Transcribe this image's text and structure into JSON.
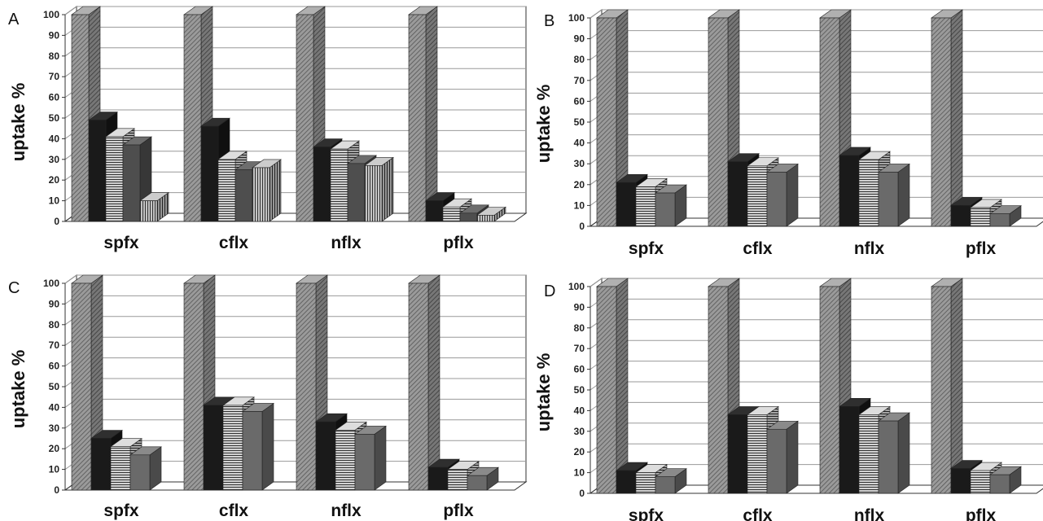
{
  "colors": {
    "control": "#8a8a8a",
    "series2": "#1a1a1a",
    "series3": "#6a6a6a",
    "series4": "#4e4e4e",
    "series5": "#7c7c7c",
    "grid": "#999999",
    "axis": "#333333"
  },
  "chart_data": [
    {
      "type": "bar",
      "panel_label": "A",
      "ylabel": "uptake %",
      "ylim": [
        0,
        100
      ],
      "yticks": [
        "0",
        "10",
        "20",
        "30",
        "40",
        "50",
        "60",
        "70",
        "80",
        "90",
        "100"
      ],
      "categories": [
        "spfx",
        "cflx",
        "nflx",
        "pflx"
      ],
      "series": [
        {
          "values": [
            100,
            100,
            100,
            100
          ]
        },
        {
          "values": [
            49,
            46,
            36,
            10
          ]
        },
        {
          "values": [
            41,
            30,
            35,
            7
          ]
        },
        {
          "values": [
            37,
            25,
            28,
            4
          ]
        },
        {
          "values": [
            10,
            26,
            27,
            3
          ]
        }
      ],
      "grid": true
    },
    {
      "type": "bar",
      "panel_label": "B",
      "ylabel": "uptake %",
      "ylim": [
        0,
        100
      ],
      "yticks": [
        "0",
        "10",
        "20",
        "30",
        "40",
        "50",
        "60",
        "70",
        "80",
        "90",
        "100"
      ],
      "categories": [
        "spfx",
        "cflx",
        "nflx",
        "pflx"
      ],
      "series": [
        {
          "values": [
            100,
            100,
            100,
            100
          ]
        },
        {
          "values": [
            21,
            31,
            34,
            10
          ]
        },
        {
          "values": [
            19,
            29,
            32,
            9
          ]
        },
        {
          "values": [
            16,
            26,
            26,
            6
          ]
        }
      ],
      "grid": true
    },
    {
      "type": "bar",
      "panel_label": "C",
      "ylabel": "uptake %",
      "ylim": [
        0,
        100
      ],
      "yticks": [
        "0",
        "10",
        "20",
        "30",
        "40",
        "50",
        "60",
        "70",
        "80",
        "90",
        "100"
      ],
      "categories": [
        "spfx",
        "cflx",
        "nflx",
        "pflx"
      ],
      "series": [
        {
          "values": [
            100,
            100,
            100,
            100
          ]
        },
        {
          "values": [
            25,
            41,
            33,
            11
          ]
        },
        {
          "values": [
            21,
            41,
            29,
            10
          ]
        },
        {
          "values": [
            17,
            38,
            27,
            7
          ]
        }
      ],
      "grid": true
    },
    {
      "type": "bar",
      "panel_label": "D",
      "ylabel": "uptake %",
      "ylim": [
        0,
        100
      ],
      "yticks": [
        "0",
        "10",
        "20",
        "30",
        "40",
        "50",
        "60",
        "70",
        "80",
        "90",
        "100"
      ],
      "categories": [
        "spfx",
        "cflx",
        "nflx",
        "pflx"
      ],
      "series": [
        {
          "values": [
            100,
            100,
            100,
            100
          ]
        },
        {
          "values": [
            11,
            38,
            42,
            12
          ]
        },
        {
          "values": [
            10,
            38,
            38,
            11
          ]
        },
        {
          "values": [
            8,
            31,
            35,
            9
          ]
        }
      ],
      "grid": true
    }
  ]
}
